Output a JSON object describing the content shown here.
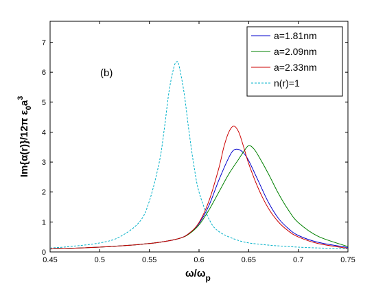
{
  "chart_data": {
    "type": "line",
    "annotation": "(b)",
    "xlabel": "ω/ω",
    "xlabel_sub": "p",
    "ylabel": "Im{α(r)}/12π ε",
    "ylabel_sub": "0",
    "ylabel_tail": "a",
    "ylabel_sup": "3",
    "xlim": [
      0.45,
      0.75
    ],
    "ylim": [
      0,
      7.7
    ],
    "xticks": [
      "0.45",
      "0.5",
      "0.55",
      "0.6",
      "0.65",
      "0.7",
      "0.75"
    ],
    "yticks": [
      "0",
      "1",
      "2",
      "3",
      "4",
      "5",
      "6",
      "7"
    ],
    "legend_position": "top-right",
    "series": [
      {
        "name": "a=1.81nm",
        "color": "#0000cc",
        "dash": "solid",
        "x": [
          0.45,
          0.47,
          0.5,
          0.52,
          0.54,
          0.56,
          0.58,
          0.59,
          0.6,
          0.61,
          0.62,
          0.63,
          0.635,
          0.64,
          0.645,
          0.65,
          0.66,
          0.67,
          0.68,
          0.69,
          0.7,
          0.72,
          0.75
        ],
        "y": [
          0.1,
          0.12,
          0.16,
          0.2,
          0.25,
          0.32,
          0.45,
          0.62,
          0.95,
          1.55,
          2.4,
          3.15,
          3.4,
          3.42,
          3.3,
          3.05,
          2.35,
          1.65,
          1.12,
          0.78,
          0.55,
          0.32,
          0.15
        ]
      },
      {
        "name": "a=2.09nm",
        "color": "#008000",
        "dash": "solid",
        "x": [
          0.45,
          0.47,
          0.5,
          0.52,
          0.54,
          0.56,
          0.58,
          0.59,
          0.6,
          0.61,
          0.62,
          0.63,
          0.64,
          0.645,
          0.65,
          0.655,
          0.66,
          0.67,
          0.68,
          0.69,
          0.7,
          0.72,
          0.75
        ],
        "y": [
          0.1,
          0.12,
          0.16,
          0.2,
          0.25,
          0.32,
          0.45,
          0.6,
          0.9,
          1.4,
          2.0,
          2.6,
          3.1,
          3.35,
          3.55,
          3.45,
          3.2,
          2.6,
          1.95,
          1.4,
          0.98,
          0.52,
          0.18
        ]
      },
      {
        "name": "a=2.33nm",
        "color": "#cc0000",
        "dash": "solid",
        "x": [
          0.45,
          0.47,
          0.5,
          0.52,
          0.54,
          0.56,
          0.58,
          0.59,
          0.6,
          0.61,
          0.62,
          0.625,
          0.63,
          0.635,
          0.64,
          0.645,
          0.65,
          0.66,
          0.67,
          0.68,
          0.69,
          0.7,
          0.72,
          0.75
        ],
        "y": [
          0.1,
          0.12,
          0.16,
          0.2,
          0.25,
          0.32,
          0.45,
          0.62,
          0.98,
          1.7,
          2.8,
          3.5,
          4.0,
          4.2,
          4.0,
          3.5,
          2.95,
          2.1,
          1.45,
          1.0,
          0.7,
          0.5,
          0.28,
          0.12
        ]
      },
      {
        "name": "n(r)=1",
        "color": "#00b0c8",
        "dash": "dashed",
        "x": [
          0.45,
          0.47,
          0.5,
          0.52,
          0.54,
          0.55,
          0.56,
          0.565,
          0.57,
          0.575,
          0.578,
          0.58,
          0.585,
          0.59,
          0.595,
          0.6,
          0.61,
          0.62,
          0.64,
          0.66,
          0.7,
          0.75
        ],
        "y": [
          0.13,
          0.18,
          0.3,
          0.5,
          1.0,
          1.7,
          3.0,
          4.1,
          5.4,
          6.2,
          6.35,
          6.2,
          5.3,
          4.0,
          2.85,
          2.0,
          1.1,
          0.68,
          0.38,
          0.26,
          0.16,
          0.1
        ]
      }
    ]
  }
}
